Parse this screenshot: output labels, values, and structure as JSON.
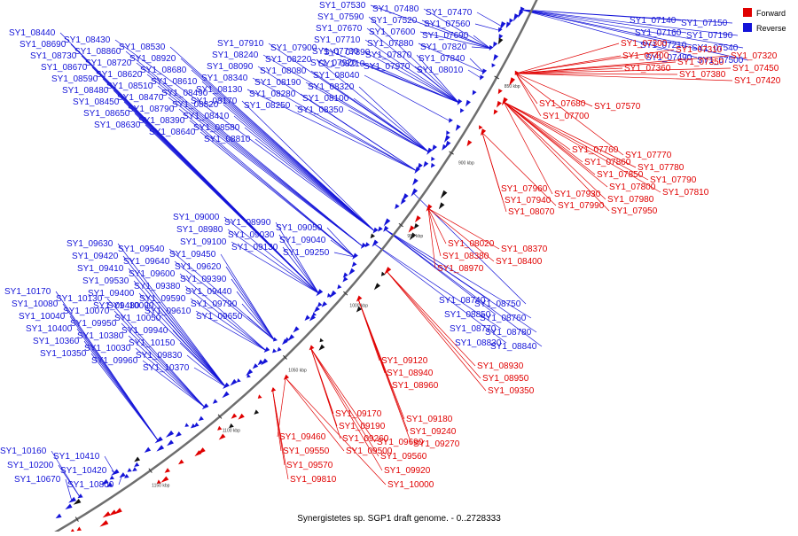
{
  "colors": {
    "forward": "#e00000",
    "reverse": "#1414d8",
    "backbone": "#6e6e6e"
  },
  "caption": "Synergistetes sp. SGP1 draft genome. - 0..2728333",
  "legend": [
    {
      "key": "forward",
      "label": "Forward"
    },
    {
      "key": "reverse",
      "label": "Reverse"
    }
  ],
  "scale_ticks": [
    "850 kbp",
    "900 kbp",
    "950 kbp",
    "1000 kbp",
    "1050 kbp",
    "1100 kbp",
    "1150 kbp",
    "1200 kbp"
  ],
  "genes_reverse": [
    "SY1_07530",
    "SY1_07480",
    "SY1_07470",
    "SY1_07590",
    "SY1_07520",
    "SY1_07560",
    "SY1_07670",
    "SY1_07600",
    "SY1_07690",
    "SY1_07710",
    "SY1_07880",
    "SY1_07820",
    "SY1_07730",
    "SY1_07870",
    "SY1_07840",
    "SY1_07920",
    "SY1_07970",
    "SY1_08010",
    "SY1_07910",
    "SY1_07900",
    "SY1_07890",
    "SY1_08240",
    "SY1_08220",
    "SY1_08210",
    "SY1_08090",
    "SY1_08080",
    "SY1_08040",
    "SY1_08340",
    "SY1_08190",
    "SY1_08320",
    "SY1_08130",
    "SY1_08280",
    "SY1_08100",
    "SY1_08170",
    "SY1_08250",
    "SY1_08350",
    "SY1_08440",
    "SY1_08430",
    "SY1_08530",
    "SY1_08690",
    "SY1_08860",
    "SY1_08920",
    "SY1_08730",
    "SY1_08720",
    "SY1_08680",
    "SY1_08670",
    "SY1_08620",
    "SY1_08610",
    "SY1_08590",
    "SY1_08510",
    "SY1_08490",
    "SY1_08480",
    "SY1_08470",
    "SY1_08820",
    "SY1_08450",
    "SY1_08790",
    "SY1_08410",
    "SY1_08650",
    "SY1_08390",
    "SY1_08580",
    "SY1_08630",
    "SY1_08640",
    "SY1_08810",
    "SY1_09000",
    "SY1_08990",
    "SY1_09050",
    "SY1_08980",
    "SY1_09030",
    "SY1_09040",
    "SY1_09100",
    "SY1_09130",
    "SY1_09250",
    "SY1_09630",
    "SY1_09540",
    "SY1_09450",
    "SY1_09420",
    "SY1_09640",
    "SY1_09620",
    "SY1_09410",
    "SY1_09600",
    "SY1_09390",
    "SY1_09530",
    "SY1_09380",
    "SY1_09440",
    "SY1_09400",
    "SY1_09590",
    "SY1_09790",
    "SY1_09480",
    "SY1_09610",
    "SY1_09650",
    "SY1_10170",
    "SY1_10130",
    "SY1_10090",
    "SY1_10080",
    "SY1_10070",
    "SY1_10050",
    "SY1_10040",
    "SY1_09950",
    "SY1_09940",
    "SY1_10400",
    "SY1_10380",
    "SY1_10150",
    "SY1_10360",
    "SY1_10030",
    "SY1_09830",
    "SY1_10350",
    "SY1_09960",
    "SY1_10370",
    "SY1_10160",
    "SY1_10410",
    "SY1_10200",
    "SY1_10420",
    "SY1_10670",
    "SY1_10800",
    "SY1_07140",
    "SY1_07150",
    "SY1_07160",
    "SY1_07190",
    "SY1_07210",
    "SY1_07540",
    "SY1_07490",
    "SY1_07500",
    "SY1_08740",
    "SY1_08750",
    "SY1_08850",
    "SY1_08760",
    "SY1_08770",
    "SY1_08780",
    "SY1_08830",
    "SY1_08840"
  ],
  "genes_forward": [
    "SY1_07300",
    "SY1_07310",
    "SY1_07320",
    "SY1_07400",
    "SY1_07350",
    "SY1_07450",
    "SY1_07360",
    "SY1_07380",
    "SY1_07420",
    "SY1_07680",
    "SY1_07570",
    "SY1_07700",
    "SY1_07760",
    "SY1_07770",
    "SY1_07860",
    "SY1_07780",
    "SY1_07850",
    "SY1_07790",
    "SY1_07800",
    "SY1_07810",
    "SY1_07960",
    "SY1_07930",
    "SY1_07980",
    "SY1_07940",
    "SY1_07990",
    "SY1_07950",
    "SY1_08070",
    "SY1_08020",
    "SY1_08370",
    "SY1_08380",
    "SY1_08400",
    "SY1_08970",
    "SY1_09120",
    "SY1_08930",
    "SY1_08940",
    "SY1_08950",
    "SY1_08960",
    "SY1_09350",
    "SY1_09170",
    "SY1_09180",
    "SY1_09190",
    "SY1_09240",
    "SY1_09260",
    "SY1_09270",
    "SY1_09500",
    "SY1_09460",
    "SY1_09690",
    "SY1_09550",
    "SY1_09560",
    "SY1_09570",
    "SY1_09920",
    "SY1_09810",
    "SY1_10000"
  ]
}
